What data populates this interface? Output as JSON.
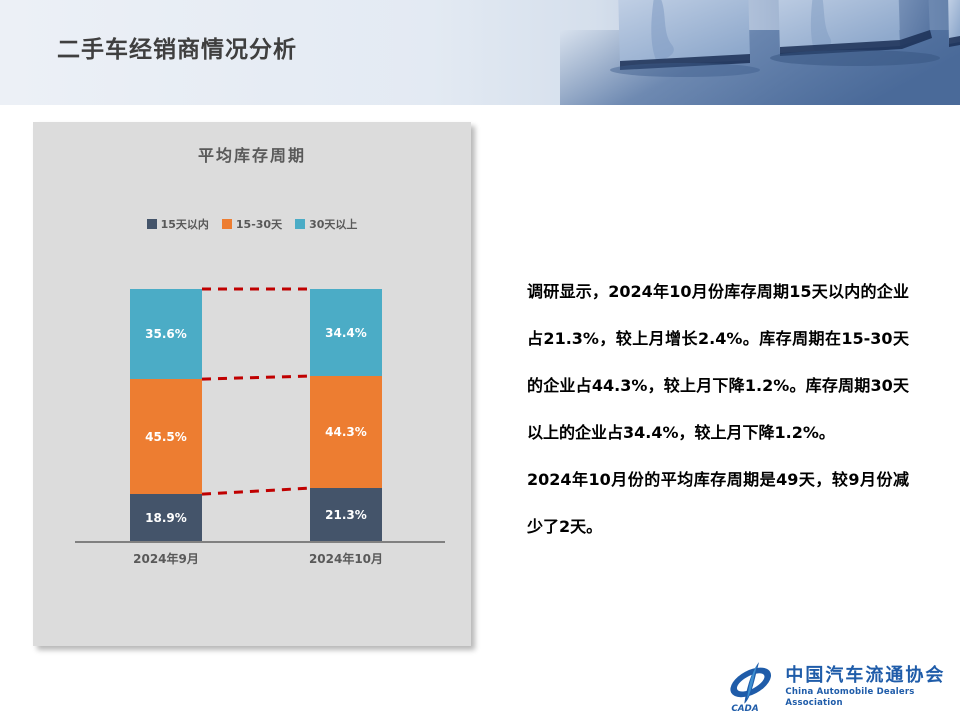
{
  "slide": {
    "title": "二手车经销商情况分析"
  },
  "chart_data": {
    "type": "bar",
    "stacked": true,
    "percent_stack": true,
    "title": "平均库存周期",
    "categories": [
      "2024年9月",
      "2024年10月"
    ],
    "series": [
      {
        "name": "15天以内",
        "color": "#44546A",
        "values": [
          18.9,
          21.3
        ]
      },
      {
        "name": "15-30天",
        "color": "#ED7D31",
        "values": [
          45.5,
          44.3
        ]
      },
      {
        "name": "30天以上",
        "color": "#4BACC6",
        "values": [
          35.6,
          34.4
        ]
      }
    ],
    "value_label_format": "0.0%",
    "legend_position": "top",
    "grid": false,
    "axis_color": "#808080",
    "connector_lines": {
      "color": "#C00000",
      "style": "dashed"
    }
  },
  "commentary": {
    "paragraph1": "调研显示，2024年10月份库存周期15天以内的企业占21.3%，较上月增长2.4%。库存周期在15-30天的企业占44.3%，较上月下降1.2%。库存周期30天以上的企业占34.4%，较上月下降1.2%。",
    "paragraph2": "2024年10月份的平均库存周期是49天，较9月份减少了2天。"
  },
  "footer_logo": {
    "cn_name": "中国汽车流通协会",
    "en_name": "China Automobile Dealers Association",
    "mark_text": "CADA",
    "brand_color": "#1F5CA9"
  }
}
